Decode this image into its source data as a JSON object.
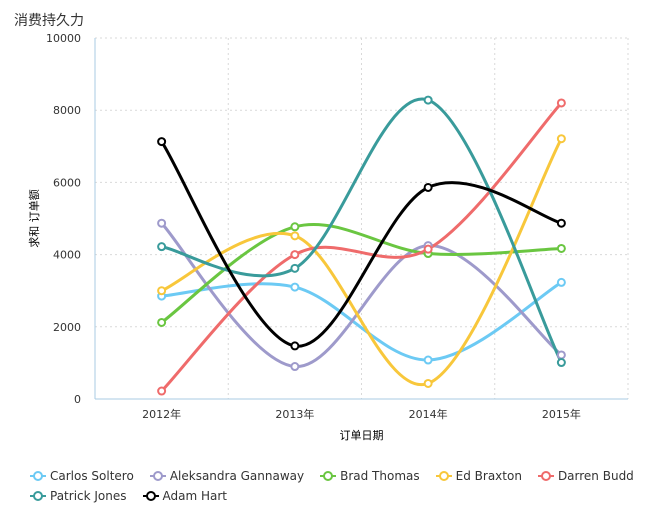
{
  "title": "消费持久力",
  "chart_data": {
    "type": "line",
    "title": "消费持久力",
    "xlabel": "订单日期",
    "ylabel": "求和 订单额",
    "categories": [
      "2012年",
      "2013年",
      "2014年",
      "2015年"
    ],
    "ylim": [
      0,
      10000
    ],
    "yticks": [
      0,
      2000,
      4000,
      6000,
      8000,
      10000
    ],
    "grid": true,
    "legend_position": "bottom",
    "series": [
      {
        "name": "Carlos Soltero",
        "color": "#6ccaf4",
        "values": [
          2850,
          3100,
          1080,
          3230
        ]
      },
      {
        "name": "Aleksandra Gannaway",
        "color": "#9e9acb",
        "values": [
          4870,
          900,
          4250,
          1220
        ]
      },
      {
        "name": "Brad Thomas",
        "color": "#6ac641",
        "values": [
          2120,
          4770,
          4030,
          4170
        ]
      },
      {
        "name": "Ed Braxton",
        "color": "#f8c73b",
        "values": [
          3000,
          4520,
          430,
          7210
        ]
      },
      {
        "name": "Darren Budd",
        "color": "#ef6b6b",
        "values": [
          220,
          4000,
          4150,
          8200
        ]
      },
      {
        "name": "Patrick Jones",
        "color": "#399b9b",
        "values": [
          4220,
          3620,
          8280,
          1010
        ]
      },
      {
        "name": "Adam Hart",
        "color": "#000000",
        "values": [
          7130,
          1470,
          5860,
          4870
        ]
      }
    ]
  }
}
